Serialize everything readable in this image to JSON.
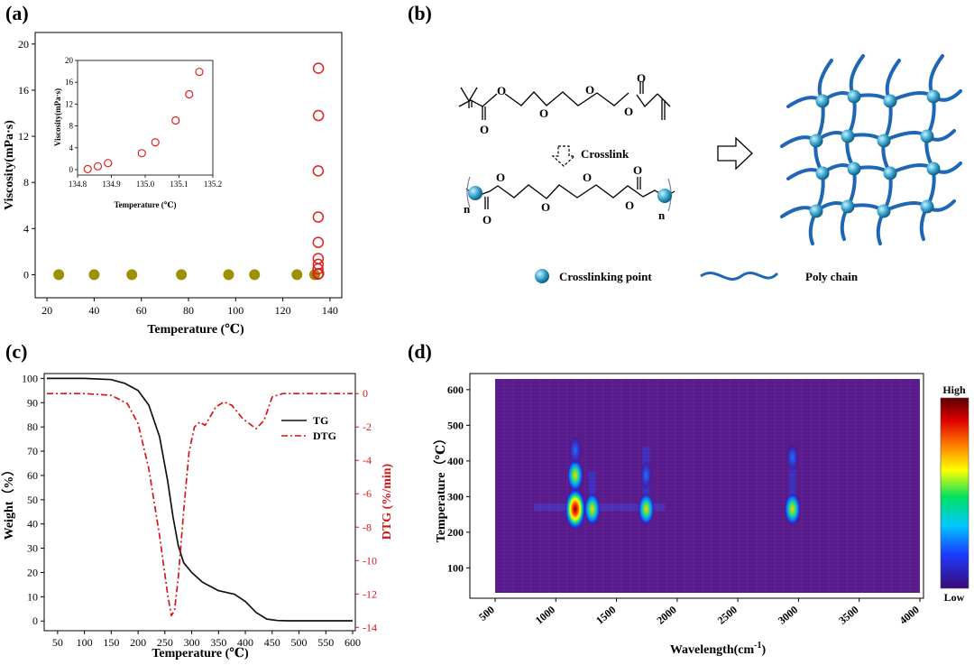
{
  "panels": {
    "a": {
      "label": "(a)"
    },
    "b": {
      "label": "(b)",
      "crosslink": "Crosslink",
      "crosslinking_point": "Crosslinking point",
      "poly_chain": "Poly chain",
      "atom_o": "O",
      "atom_n": "n"
    },
    "c": {
      "label": "(c)"
    },
    "d": {
      "label": "(d)",
      "colorbar_high": "High",
      "colorbar_low": "Low"
    }
  },
  "chart_data": [
    {
      "id": "a-main",
      "type": "scatter",
      "xlabel": "Temperature (℃)",
      "ylabel": "Viscosity(mPa·s)",
      "xlim": [
        15,
        145
      ],
      "ylim": [
        -2,
        21
      ],
      "xticks": [
        20,
        40,
        60,
        80,
        100,
        120,
        140
      ],
      "yticks": [
        0,
        4,
        8,
        12,
        16,
        20
      ],
      "series": [
        {
          "marker": "filled-circle",
          "color": "#9c8f00",
          "x": [
            25,
            40,
            56,
            77,
            97,
            108,
            126,
            133.5
          ],
          "y": [
            0,
            0,
            0,
            0,
            0,
            0,
            0,
            0
          ]
        },
        {
          "marker": "open-circle",
          "color": "#e02020",
          "x": [
            134.9,
            134.9,
            135,
            135,
            135,
            135,
            135,
            135.1,
            135.1,
            135.2
          ],
          "y": [
            0.05,
            0.5,
            0.9,
            1.4,
            2.8,
            5,
            9,
            13.8,
            17.9,
            0.1
          ]
        }
      ]
    },
    {
      "id": "a-inset",
      "type": "scatter",
      "xlabel": "Temperature (℃)",
      "ylabel": "Viscosity(mPa·s)",
      "xlim": [
        134.8,
        135.2
      ],
      "ylim": [
        -1,
        20
      ],
      "xticks": [
        134.8,
        134.9,
        135.0,
        135.1,
        135.2
      ],
      "yticks": [
        0,
        4,
        8,
        12,
        16,
        20
      ],
      "series": [
        {
          "marker": "open-circle",
          "color": "#e02020",
          "x": [
            134.83,
            134.86,
            134.89,
            134.99,
            135.03,
            135.09,
            135.13,
            135.16
          ],
          "y": [
            0.1,
            0.6,
            1.2,
            3.0,
            5.0,
            9.0,
            13.8,
            17.9
          ]
        }
      ]
    },
    {
      "id": "c",
      "type": "line",
      "xlabel": "Temperature (℃)",
      "ylabel": "Weight（%）",
      "y2label": "DTG (%/min)",
      "xlim": [
        25,
        605
      ],
      "ylim": [
        -4,
        102
      ],
      "y2lim": [
        -14.2,
        1.2
      ],
      "xticks": [
        50,
        100,
        150,
        200,
        250,
        300,
        350,
        400,
        450,
        500,
        550,
        600
      ],
      "yticks": [
        0,
        10,
        20,
        30,
        40,
        50,
        60,
        70,
        80,
        90,
        100
      ],
      "y2ticks": [
        0,
        -2,
        -4,
        -6,
        -8,
        -10,
        -12,
        -14
      ],
      "legend": "top-right",
      "series": [
        {
          "name": "TG",
          "color": "#111111",
          "axis": "left",
          "x": [
            30,
            100,
            150,
            175,
            200,
            220,
            240,
            255,
            265,
            275,
            285,
            300,
            320,
            350,
            380,
            400,
            420,
            440,
            460,
            480,
            600
          ],
          "y": [
            100,
            100,
            99.5,
            98,
            95,
            89,
            76,
            58,
            43,
            31,
            24,
            20,
            16,
            12.5,
            11,
            8,
            3.5,
            0.8,
            0.2,
            0.1,
            0.1
          ]
        },
        {
          "name": "DTG",
          "color": "#d61515",
          "axis": "right",
          "x": [
            30,
            100,
            150,
            180,
            200,
            220,
            240,
            255,
            262,
            268,
            275,
            285,
            295,
            305,
            315,
            325,
            345,
            360,
            375,
            395,
            420,
            435,
            450,
            470,
            600
          ],
          "y": [
            0,
            0,
            -0.1,
            -0.6,
            -1.8,
            -4.5,
            -8.5,
            -12,
            -13.3,
            -13,
            -11,
            -7,
            -3.5,
            -2,
            -1.7,
            -1.9,
            -0.8,
            -0.5,
            -0.7,
            -1.5,
            -2.1,
            -1.6,
            -0.2,
            0,
            0
          ]
        }
      ]
    },
    {
      "id": "d",
      "type": "heatmap",
      "xlabel": "Wavelength(cm",
      "xlabel_sup": "-1",
      "xlabel_tail": ")",
      "ylabel": "Temperature（℃）",
      "xlim": [
        500,
        4000
      ],
      "ylim": [
        30,
        630
      ],
      "xticks": [
        500,
        1000,
        1500,
        2000,
        2500,
        3000,
        3500,
        4000
      ],
      "yticks": [
        100,
        200,
        300,
        400,
        500,
        600
      ],
      "colormap": [
        "#3b0a78",
        "#1a3cff",
        "#00c8ff",
        "#00e060",
        "#ffff00",
        "#ff8000",
        "#e00000",
        "#5a0000"
      ],
      "hotspots": [
        {
          "x": 1160,
          "y": 265,
          "intensity": "high"
        },
        {
          "x": 1160,
          "y": 360,
          "intensity": "medium"
        },
        {
          "x": 1160,
          "y": 430,
          "intensity": "low"
        },
        {
          "x": 1300,
          "y": 265,
          "intensity": "medium"
        },
        {
          "x": 1745,
          "y": 265,
          "intensity": "medium"
        },
        {
          "x": 1745,
          "y": 360,
          "intensity": "low"
        },
        {
          "x": 2950,
          "y": 265,
          "intensity": "medium"
        },
        {
          "x": 2950,
          "y": 410,
          "intensity": "low"
        }
      ]
    }
  ],
  "panel_b": {
    "colors": {
      "sphere": "#3fa0c8",
      "chain": "#1f67b5"
    }
  },
  "colorbar": {
    "high": "High",
    "low": "Low"
  }
}
